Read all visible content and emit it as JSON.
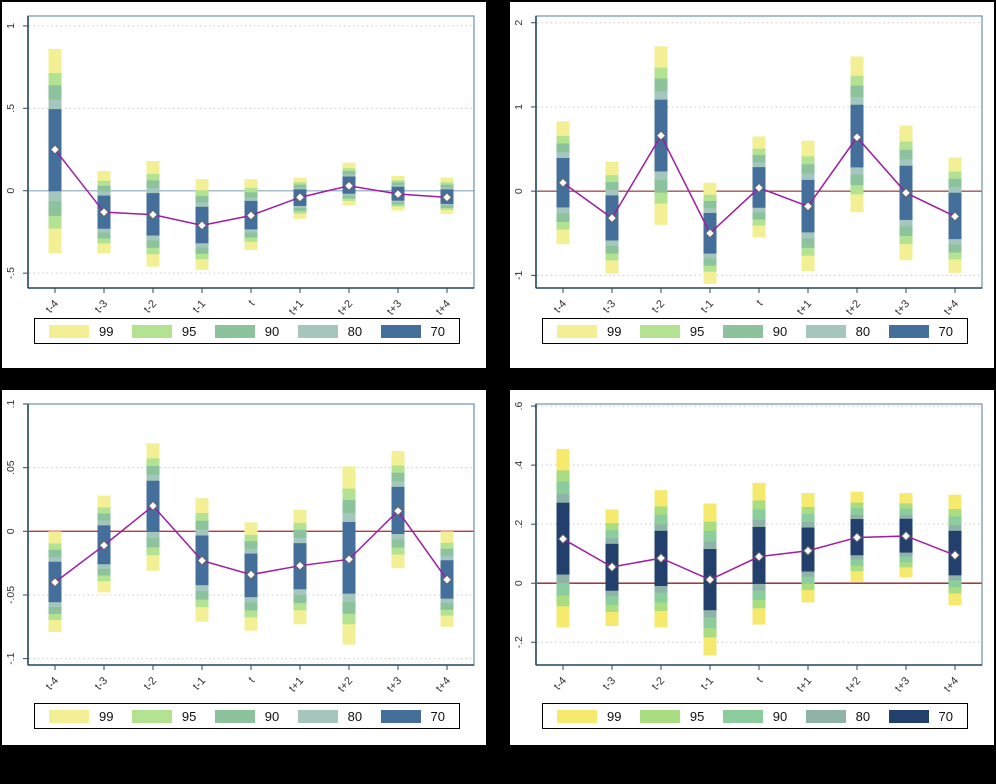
{
  "page": {
    "background": "#000000",
    "panel_background": "#ffffff"
  },
  "ci_levels": {
    "labels": [
      "99",
      "95",
      "90",
      "80",
      "70"
    ],
    "fractions": [
      1.0,
      0.761,
      0.639,
      0.498,
      0.402
    ],
    "legend_position": "bottom"
  },
  "categories": [
    "t-4",
    "t-3",
    "t-2",
    "t-1",
    "t",
    "t+1",
    "t+2",
    "t+3",
    "t+4"
  ],
  "styles": {
    "scheme_a": {
      "c99": "#f2ef94",
      "c95": "#b3e293",
      "c90": "#8cc29c",
      "c80": "#a4c6bc",
      "c70": "#436f9a"
    },
    "scheme_b": {
      "c99": "#f5ea6d",
      "c95": "#aadd82",
      "c90": "#8bcd9c",
      "c80": "#90b3a8",
      "c70": "#22406b"
    },
    "line_color": "#9e1da2",
    "marker_fill": "#ffffff",
    "marker_stroke": "#666666",
    "grid_color": "#cbcbcb",
    "box_color": "#6d93a8",
    "axis_color": "#2b4a63",
    "tick_text_color": "#333333"
  },
  "chart_data": [
    {
      "id": "top-left",
      "type": "line",
      "subtype": "ci_interval_bands",
      "row": "top",
      "title": "",
      "xlabel": "",
      "ylabel": "",
      "scheme": "scheme_a",
      "zero_line_color": "#a9bccb",
      "ylim": [
        -0.59,
        1.06
      ],
      "yticks": [
        1,
        0.5,
        0,
        -0.5
      ],
      "ytick_labels": [
        "1",
        ".5",
        "0",
        "-.5"
      ],
      "points": [
        {
          "x": "t-4",
          "est": 0.25,
          "lo99": -0.38,
          "hi99": 0.86
        },
        {
          "x": "t-3",
          "est": -0.13,
          "lo99": -0.38,
          "hi99": 0.12
        },
        {
          "x": "t-2",
          "est": -0.145,
          "lo99": -0.46,
          "hi99": 0.18
        },
        {
          "x": "t-1",
          "est": -0.21,
          "lo99": -0.48,
          "hi99": 0.07
        },
        {
          "x": "t",
          "est": -0.15,
          "lo99": -0.36,
          "hi99": 0.07
        },
        {
          "x": "t+1",
          "est": -0.04,
          "lo99": -0.17,
          "hi99": 0.08
        },
        {
          "x": "t+2",
          "est": 0.03,
          "lo99": -0.09,
          "hi99": 0.17
        },
        {
          "x": "t+3",
          "est": -0.02,
          "lo99": -0.12,
          "hi99": 0.09
        },
        {
          "x": "t+4",
          "est": -0.04,
          "lo99": -0.14,
          "hi99": 0.08
        }
      ]
    },
    {
      "id": "top-right",
      "type": "line",
      "subtype": "ci_interval_bands",
      "row": "top",
      "title": "",
      "xlabel": "",
      "ylabel": "",
      "scheme": "scheme_a",
      "zero_line_color": "#a65353",
      "ylim": [
        -1.15,
        2.08
      ],
      "yticks": [
        2,
        1,
        0,
        -1
      ],
      "ytick_labels": [
        "2",
        "1",
        "0",
        "-1"
      ],
      "points": [
        {
          "x": "t-4",
          "est": 0.1,
          "lo99": -0.63,
          "hi99": 0.83
        },
        {
          "x": "t-3",
          "est": -0.32,
          "lo99": -0.98,
          "hi99": 0.35
        },
        {
          "x": "t-2",
          "est": 0.66,
          "lo99": -0.4,
          "hi99": 1.72
        },
        {
          "x": "t-1",
          "est": -0.5,
          "lo99": -1.1,
          "hi99": 0.1
        },
        {
          "x": "t",
          "est": 0.04,
          "lo99": -0.55,
          "hi99": 0.65
        },
        {
          "x": "t+1",
          "est": -0.18,
          "lo99": -0.95,
          "hi99": 0.6
        },
        {
          "x": "t+2",
          "est": 0.64,
          "lo99": -0.25,
          "hi99": 1.6
        },
        {
          "x": "t+3",
          "est": -0.02,
          "lo99": -0.82,
          "hi99": 0.78
        },
        {
          "x": "t+4",
          "est": -0.3,
          "lo99": -0.97,
          "hi99": 0.4
        }
      ]
    },
    {
      "id": "bottom-left",
      "type": "line",
      "subtype": "ci_interval_bands",
      "row": "bottom",
      "title": "",
      "xlabel": "",
      "ylabel": "",
      "scheme": "scheme_a",
      "zero_line_color": "#c23434",
      "ylim": [
        -0.105,
        0.1
      ],
      "yticks": [
        0.1,
        0.05,
        0,
        -0.05,
        -0.1
      ],
      "ytick_labels": [
        ".1",
        ".05",
        "0",
        "-.05",
        "-.1"
      ],
      "points": [
        {
          "x": "t-4",
          "est": -0.04,
          "lo99": -0.079,
          "hi99": 0.0
        },
        {
          "x": "t-3",
          "est": -0.011,
          "lo99": -0.048,
          "hi99": 0.028
        },
        {
          "x": "t-2",
          "est": 0.02,
          "lo99": -0.031,
          "hi99": 0.069
        },
        {
          "x": "t-1",
          "est": -0.023,
          "lo99": -0.071,
          "hi99": 0.026
        },
        {
          "x": "t",
          "est": -0.034,
          "lo99": -0.078,
          "hi99": 0.007
        },
        {
          "x": "t+1",
          "est": -0.027,
          "lo99": -0.073,
          "hi99": 0.017
        },
        {
          "x": "t+2",
          "est": -0.022,
          "lo99": -0.089,
          "hi99": 0.051
        },
        {
          "x": "t+3",
          "est": 0.016,
          "lo99": -0.029,
          "hi99": 0.063
        },
        {
          "x": "t+4",
          "est": -0.038,
          "lo99": -0.075,
          "hi99": 0.0
        }
      ]
    },
    {
      "id": "bottom-right",
      "type": "line",
      "subtype": "ci_interval_bands",
      "row": "bottom",
      "title": "",
      "xlabel": "",
      "ylabel": "",
      "scheme": "scheme_b",
      "zero_line_color": "#8e2222",
      "ylim": [
        -0.277,
        0.607
      ],
      "yticks": [
        0.6,
        0.4,
        0.2,
        0,
        -0.2
      ],
      "ytick_labels": [
        ".6",
        ".4",
        ".2",
        "0",
        "-.2"
      ],
      "points": [
        {
          "x": "t-4",
          "est": 0.15,
          "lo99": -0.15,
          "hi99": 0.455
        },
        {
          "x": "t-3",
          "est": 0.055,
          "lo99": -0.145,
          "hi99": 0.25
        },
        {
          "x": "t-2",
          "est": 0.085,
          "lo99": -0.15,
          "hi99": 0.315
        },
        {
          "x": "t-1",
          "est": 0.012,
          "lo99": -0.245,
          "hi99": 0.27
        },
        {
          "x": "t",
          "est": 0.09,
          "lo99": -0.14,
          "hi99": 0.34
        },
        {
          "x": "t+1",
          "est": 0.11,
          "lo99": -0.065,
          "hi99": 0.305
        },
        {
          "x": "t+2",
          "est": 0.155,
          "lo99": 0.005,
          "hi99": 0.31
        },
        {
          "x": "t+3",
          "est": 0.16,
          "lo99": 0.02,
          "hi99": 0.305
        },
        {
          "x": "t+4",
          "est": 0.095,
          "lo99": -0.075,
          "hi99": 0.3
        }
      ]
    }
  ]
}
